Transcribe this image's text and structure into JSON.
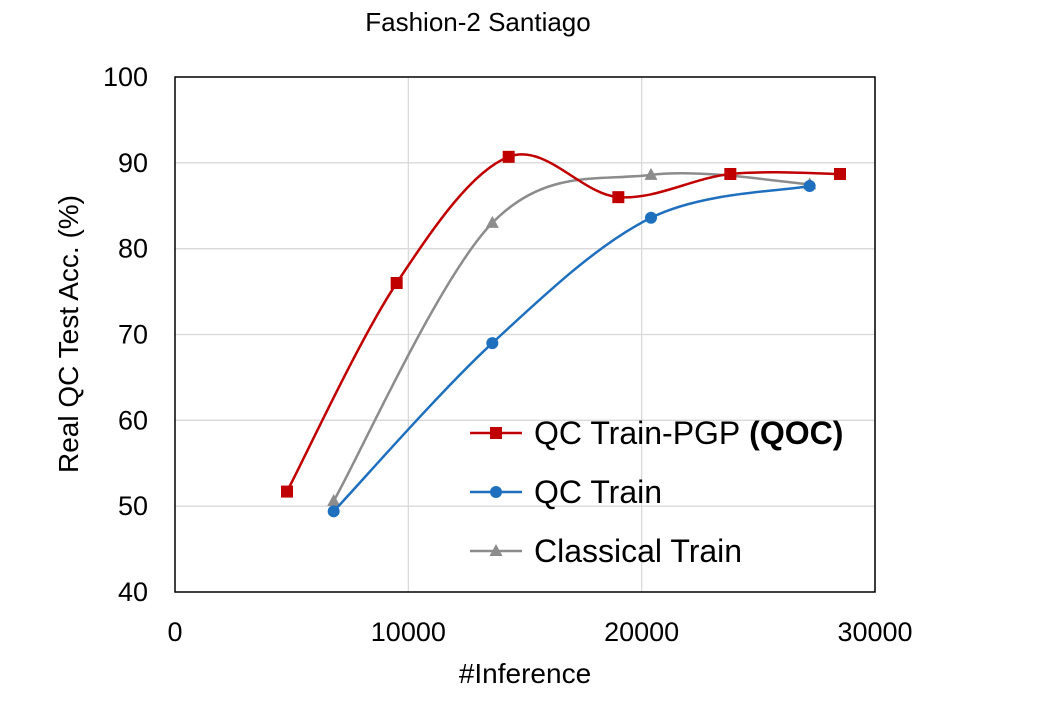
{
  "chart_data": {
    "type": "line",
    "title": "Fashion-2 Santiago",
    "xlabel": "#Inference",
    "ylabel": "Real QC Test Acc. (%)",
    "xlim": [
      0,
      30000
    ],
    "ylim": [
      40,
      100
    ],
    "x_ticks": [
      "0",
      "10000",
      "20000",
      "30000"
    ],
    "y_ticks": [
      "40",
      "50",
      "60",
      "70",
      "80",
      "90",
      "100"
    ],
    "grid": true,
    "legend_position": "bottom-right",
    "series": [
      {
        "name": "QC Train-PGP",
        "name_suffix": "(QOC)",
        "color": "#c00000",
        "marker": "square",
        "x": [
          4800,
          9500,
          14300,
          19000,
          23800,
          28500
        ],
        "y": [
          51.7,
          76.0,
          90.7,
          86.0,
          88.7,
          88.7
        ]
      },
      {
        "name": "QC Train",
        "color": "#1f6fbf",
        "marker": "circle",
        "x": [
          6800,
          13600,
          20400,
          27200
        ],
        "y": [
          49.4,
          69.0,
          83.6,
          87.3
        ]
      },
      {
        "name": "Classical Train",
        "color": "#8c8c8c",
        "marker": "triangle",
        "x": [
          6800,
          13600,
          20400,
          27200
        ],
        "y": [
          50.6,
          83.0,
          88.6,
          87.5
        ]
      }
    ]
  }
}
